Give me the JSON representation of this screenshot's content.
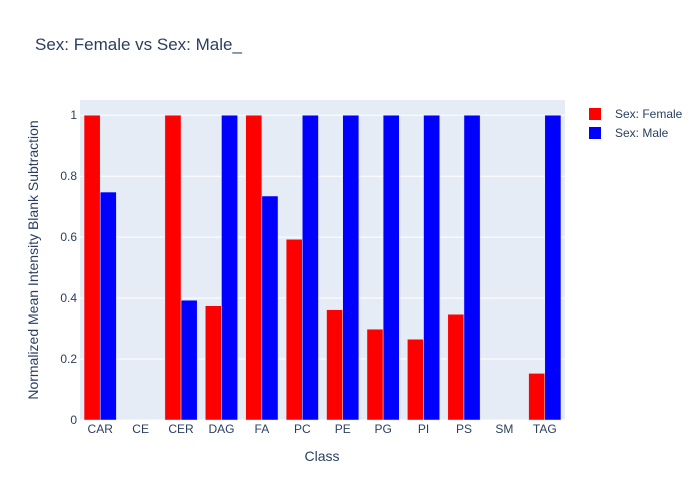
{
  "chart_data": {
    "type": "bar",
    "title": "Sex: Female vs Sex: Male_",
    "xlabel": "Class",
    "ylabel": "Normalized Mean Intensity Blank Subtraction",
    "ylim": [
      0,
      1.05
    ],
    "yticks": [
      0,
      0.2,
      0.4,
      0.6,
      0.8,
      1
    ],
    "ytick_labels": [
      "0",
      "0.2",
      "0.4",
      "0.6",
      "0.8",
      "1"
    ],
    "grid": true,
    "legend_position": "top-right",
    "categories": [
      "CAR",
      "CE",
      "CER",
      "DAG",
      "FA",
      "PC",
      "PE",
      "PG",
      "PI",
      "PS",
      "SM",
      "TAG"
    ],
    "series": [
      {
        "name": "Sex: Female",
        "color": "#ff0000",
        "values": [
          1,
          0,
          1,
          0.375,
          1,
          0.593,
          0.362,
          0.298,
          0.265,
          0.347,
          0,
          0.153
        ]
      },
      {
        "name": "Sex: Male",
        "color": "#0000ff",
        "values": [
          0.748,
          0,
          0.393,
          1,
          0.735,
          1,
          1,
          1,
          1,
          1,
          0,
          1
        ]
      }
    ]
  }
}
